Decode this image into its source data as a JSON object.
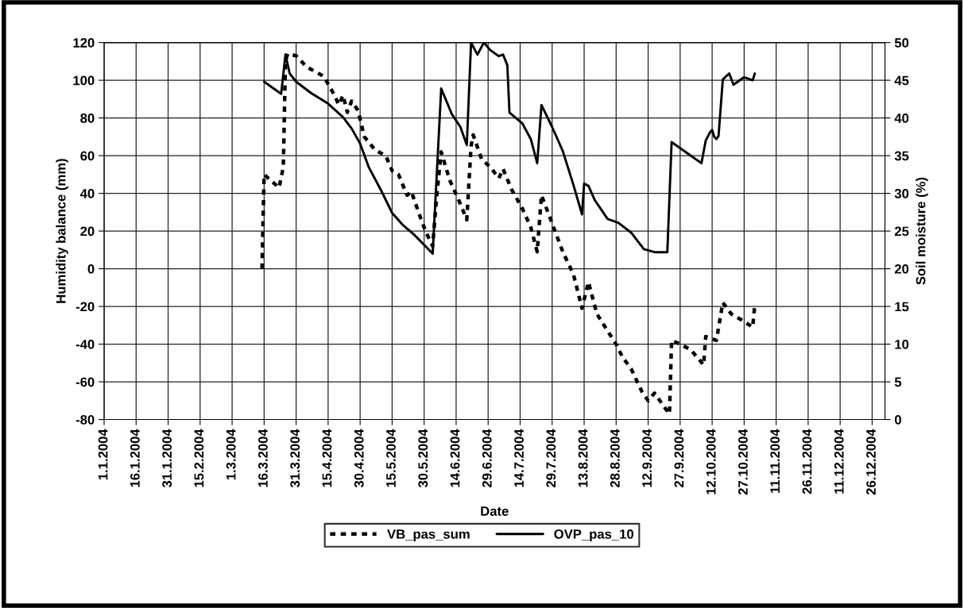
{
  "chart_data": {
    "type": "line",
    "xlabel": "Date",
    "ylabel": "Humidity balance (mm)",
    "y2label": "Soil moisture (%)",
    "xlim": [
      "2004-01-01",
      "2005-01-01"
    ],
    "xticks": [
      {
        "value": "2004-01-01",
        "label": "1.1.2004"
      },
      {
        "value": "2004-01-16",
        "label": "16.1.2004"
      },
      {
        "value": "2004-01-31",
        "label": "31.1.2004"
      },
      {
        "value": "2004-02-15",
        "label": "15.2.2004"
      },
      {
        "value": "2004-03-01",
        "label": "1.3.2004"
      },
      {
        "value": "2004-03-16",
        "label": "16.3.2004"
      },
      {
        "value": "2004-03-31",
        "label": "31.3.2004"
      },
      {
        "value": "2004-04-15",
        "label": "15.4.2004"
      },
      {
        "value": "2004-04-30",
        "label": "30.4.2004"
      },
      {
        "value": "2004-05-15",
        "label": "15.5.2004"
      },
      {
        "value": "2004-05-30",
        "label": "30.5.2004"
      },
      {
        "value": "2004-06-14",
        "label": "14.6.2004"
      },
      {
        "value": "2004-06-29",
        "label": "29.6.2004"
      },
      {
        "value": "2004-07-14",
        "label": "14.7.2004"
      },
      {
        "value": "2004-07-29",
        "label": "29.7.2004"
      },
      {
        "value": "2004-08-13",
        "label": "13.8.2004"
      },
      {
        "value": "2004-08-28",
        "label": "28.8.2004"
      },
      {
        "value": "2004-09-12",
        "label": "12.9.2004"
      },
      {
        "value": "2004-09-27",
        "label": "27.9.2004"
      },
      {
        "value": "2004-10-12",
        "label": "12.10.2004"
      },
      {
        "value": "2004-10-27",
        "label": "27.10.2004"
      },
      {
        "value": "2004-11-11",
        "label": "11.11.2004"
      },
      {
        "value": "2004-11-26",
        "label": "26.11.2004"
      },
      {
        "value": "2004-12-11",
        "label": "11.12.2004"
      },
      {
        "value": "2004-12-26",
        "label": "26.12.2004"
      }
    ],
    "ylim": [
      -80,
      120
    ],
    "yticks": [
      -80,
      -60,
      -40,
      -20,
      0,
      20,
      40,
      60,
      80,
      100,
      120
    ],
    "y2lim": [
      0,
      50
    ],
    "y2ticks": [
      0,
      5,
      10,
      15,
      20,
      25,
      30,
      35,
      40,
      45,
      50
    ],
    "grid": true,
    "legend": "bottom",
    "marker": "none",
    "series": [
      {
        "name": "VB_pas_sum",
        "color": "#000000",
        "line_style": "dotted",
        "x": [
          "2004-03-15",
          "2004-03-16",
          "2004-03-23",
          "2004-03-25",
          "2004-03-26",
          "2004-03-27",
          "2004-03-31",
          "2004-04-05",
          "2004-04-10",
          "2004-04-13",
          "2004-04-18",
          "2004-04-20",
          "2004-04-22",
          "2004-04-24",
          "2004-04-26",
          "2004-04-29",
          "2004-05-02",
          "2004-05-07",
          "2004-05-12",
          "2004-05-15",
          "2004-05-18",
          "2004-05-22",
          "2004-05-24",
          "2004-05-28",
          "2004-05-31",
          "2004-06-03",
          "2004-06-05",
          "2004-06-07",
          "2004-06-11",
          "2004-06-15",
          "2004-06-19",
          "2004-06-21",
          "2004-06-22",
          "2004-06-26",
          "2004-06-30",
          "2004-07-04",
          "2004-07-06",
          "2004-07-10",
          "2004-07-15",
          "2004-07-19",
          "2004-07-22",
          "2004-07-24",
          "2004-07-29",
          "2004-08-03",
          "2004-08-08",
          "2004-08-12",
          "2004-08-15",
          "2004-08-19",
          "2004-08-24",
          "2004-08-28",
          "2004-08-31",
          "2004-09-04",
          "2004-09-09",
          "2004-09-12",
          "2004-09-15",
          "2004-09-20",
          "2004-09-22",
          "2004-09-23",
          "2004-09-27",
          "2004-10-02",
          "2004-10-08",
          "2004-10-09",
          "2004-10-14",
          "2004-10-17",
          "2004-10-21",
          "2004-10-27",
          "2004-10-31",
          "2004-11-01"
        ],
        "values": [
          0,
          50,
          43,
          54,
          110,
          114,
          113,
          107,
          104,
          102,
          92,
          87,
          92,
          83,
          89,
          84,
          70,
          63,
          60,
          52,
          50,
          39,
          41,
          28,
          19,
          12,
          40,
          62,
          47,
          37,
          26,
          65,
          71,
          58,
          54,
          48,
          53,
          42,
          32,
          22,
          9,
          39,
          24,
          9,
          -3,
          -21,
          -7,
          -24,
          -33,
          -40,
          -47,
          -53,
          -65,
          -70,
          -66,
          -74,
          -77,
          -38,
          -40,
          -43,
          -51,
          -36,
          -38,
          -18,
          -24,
          -28,
          -31,
          -19
        ]
      },
      {
        "name": "OVP_pas_10",
        "color": "#000000",
        "line_style": "solid",
        "axis": "y2",
        "x": [
          "2004-03-16",
          "2004-03-24",
          "2004-03-26",
          "2004-03-28",
          "2004-03-31",
          "2004-04-07",
          "2004-04-15",
          "2004-04-22",
          "2004-04-26",
          "2004-04-30",
          "2004-05-04",
          "2004-05-10",
          "2004-05-15",
          "2004-05-20",
          "2004-05-25",
          "2004-06-02",
          "2004-06-03",
          "2004-06-07",
          "2004-06-12",
          "2004-06-16",
          "2004-06-19",
          "2004-06-21",
          "2004-06-24",
          "2004-06-27",
          "2004-06-30",
          "2004-07-04",
          "2004-07-06",
          "2004-07-08",
          "2004-07-09",
          "2004-07-15",
          "2004-07-19",
          "2004-07-22",
          "2004-07-24",
          "2004-07-29",
          "2004-08-03",
          "2004-08-08",
          "2004-08-12",
          "2004-08-13",
          "2004-08-15",
          "2004-08-18",
          "2004-08-24",
          "2004-08-29",
          "2004-09-04",
          "2004-09-10",
          "2004-09-15",
          "2004-09-21",
          "2004-09-23",
          "2004-10-01",
          "2004-10-07",
          "2004-10-09",
          "2004-10-11",
          "2004-10-12",
          "2004-10-13",
          "2004-10-14",
          "2004-10-15",
          "2004-10-17",
          "2004-10-20",
          "2004-10-22",
          "2004-10-27",
          "2004-10-31",
          "2004-11-01"
        ],
        "values": [
          44.8,
          43.2,
          48.4,
          45.9,
          44.8,
          43.3,
          41.9,
          40.1,
          38.6,
          36.6,
          33.5,
          30.3,
          27.4,
          25.8,
          24.6,
          22.3,
          22.0,
          43.9,
          40.5,
          38.8,
          36.4,
          50,
          48.4,
          50,
          49,
          48.2,
          48.4,
          47,
          40.7,
          39.3,
          37.2,
          34,
          41.7,
          38.8,
          35.6,
          31.1,
          27.2,
          31.3,
          31.0,
          29.1,
          26.6,
          26.1,
          24.8,
          22.6,
          22.2,
          22.2,
          36.8,
          35.2,
          34,
          37,
          38.1,
          38.4,
          37.5,
          37.2,
          37.6,
          45.1,
          45.9,
          44.4,
          45.4,
          45,
          45.9
        ]
      }
    ]
  }
}
